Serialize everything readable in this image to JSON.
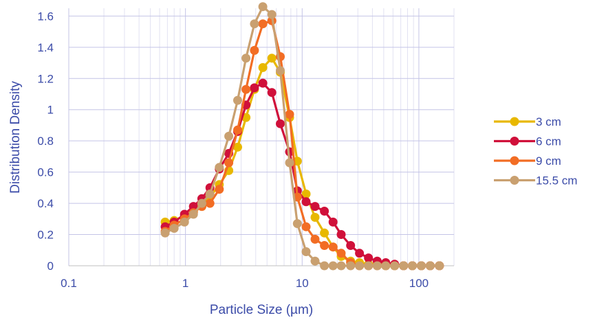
{
  "chart_data": {
    "type": "line",
    "xlabel": "Particle Size (µm)",
    "ylabel": "Distribution Density",
    "xscale": "log",
    "xlim": [
      0.1,
      200
    ],
    "ylim": [
      0,
      1.65
    ],
    "x_ticks": [
      0.1,
      1,
      10,
      100
    ],
    "x_tick_labels": [
      "0.1",
      "1",
      "10",
      "100"
    ],
    "y_ticks": [
      0,
      0.2,
      0.4,
      0.6,
      0.8,
      1,
      1.2,
      1.4,
      1.6
    ],
    "y_tick_labels": [
      "0",
      "0.2",
      "0.4",
      "0.6",
      "0.8",
      "1",
      "1.2",
      "1.4",
      "1.6"
    ],
    "grid": true,
    "legend_position": "right",
    "x": [
      0.67,
      0.8,
      0.98,
      1.17,
      1.38,
      1.62,
      1.95,
      2.35,
      2.8,
      3.3,
      3.9,
      4.6,
      5.5,
      6.5,
      7.8,
      9.1,
      10.8,
      12.9,
      15.5,
      18.4,
      21.6,
      26,
      31,
      37,
      44,
      52,
      62,
      74,
      88,
      105,
      125,
      150
    ],
    "series": [
      {
        "name": "3 cm",
        "color": "#e8b800",
        "values": [
          0.28,
          0.29,
          0.32,
          0.35,
          0.38,
          0.44,
          0.52,
          0.61,
          0.76,
          0.95,
          1.13,
          1.27,
          1.33,
          1.24,
          0.95,
          0.67,
          0.46,
          0.31,
          0.21,
          0.12,
          0.06,
          0.03,
          0.02,
          0.01,
          0.01,
          0.0,
          0.0,
          0.0,
          0.0,
          0.0,
          0.0,
          0.0
        ]
      },
      {
        "name": "6 cm",
        "color": "#d0103a",
        "values": [
          0.25,
          0.28,
          0.33,
          0.38,
          0.43,
          0.5,
          0.62,
          0.72,
          0.86,
          1.03,
          1.14,
          1.17,
          1.11,
          0.91,
          0.73,
          0.48,
          0.41,
          0.38,
          0.35,
          0.28,
          0.2,
          0.13,
          0.08,
          0.05,
          0.03,
          0.02,
          0.01,
          0.0,
          0.0,
          0.0,
          0.0,
          0.0
        ]
      },
      {
        "name": "9 cm",
        "color": "#f26d24",
        "values": [
          0.22,
          0.26,
          0.3,
          0.34,
          0.38,
          0.4,
          0.49,
          0.66,
          0.87,
          1.13,
          1.38,
          1.55,
          1.57,
          1.34,
          0.97,
          0.44,
          0.25,
          0.17,
          0.13,
          0.12,
          0.08,
          0.02,
          0.0,
          0.0,
          0.0,
          0.0,
          0.0,
          0.0,
          0.0,
          0.0,
          0.0,
          0.0
        ]
      },
      {
        "name": "15.5 cm",
        "color": "#c9a070",
        "values": [
          0.21,
          0.24,
          0.28,
          0.33,
          0.4,
          0.46,
          0.63,
          0.83,
          1.06,
          1.33,
          1.55,
          1.66,
          1.61,
          1.25,
          0.66,
          0.27,
          0.09,
          0.03,
          0.0,
          0.0,
          0.0,
          0.0,
          0.0,
          0.0,
          0.0,
          0.0,
          0.0,
          0.0,
          0.0,
          0.0,
          0.0,
          0.0
        ]
      }
    ]
  }
}
